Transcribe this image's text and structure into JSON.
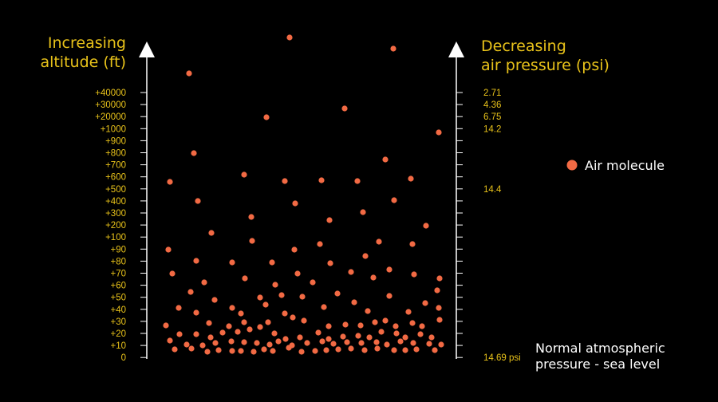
{
  "colors": {
    "accent": "#e8c21a",
    "molecule": "#f26a44",
    "axis": "#ffffff",
    "background": "#000000"
  },
  "left_axis": {
    "title_line1": "Increasing",
    "title_line2": "altitude (ft)",
    "ticks": [
      "+40000",
      "+30000",
      "+20000",
      "+1000",
      "+900",
      "+800",
      "+700",
      "+600",
      "+500",
      "+400",
      "+300",
      "+200",
      "+100",
      "+90",
      "+80",
      "+70",
      "+60",
      "+50",
      "+40",
      "+30",
      "+20",
      "+10",
      "0"
    ]
  },
  "right_axis": {
    "title_line1": "Decreasing",
    "title_line2": "air pressure (psi)",
    "labels": [
      {
        "text": "2.71",
        "level": 0
      },
      {
        "text": "4.36",
        "level": 1
      },
      {
        "text": "6.75",
        "level": 2
      },
      {
        "text": "14.2",
        "level": 3
      },
      {
        "text": "14.4",
        "level": 8
      },
      {
        "text": "14.69 psi",
        "level": 22
      }
    ]
  },
  "legend": {
    "label": "Air molecule"
  },
  "sea_level_note": {
    "line1": "Normal atmospheric",
    "line2": "pressure - sea level"
  }
}
